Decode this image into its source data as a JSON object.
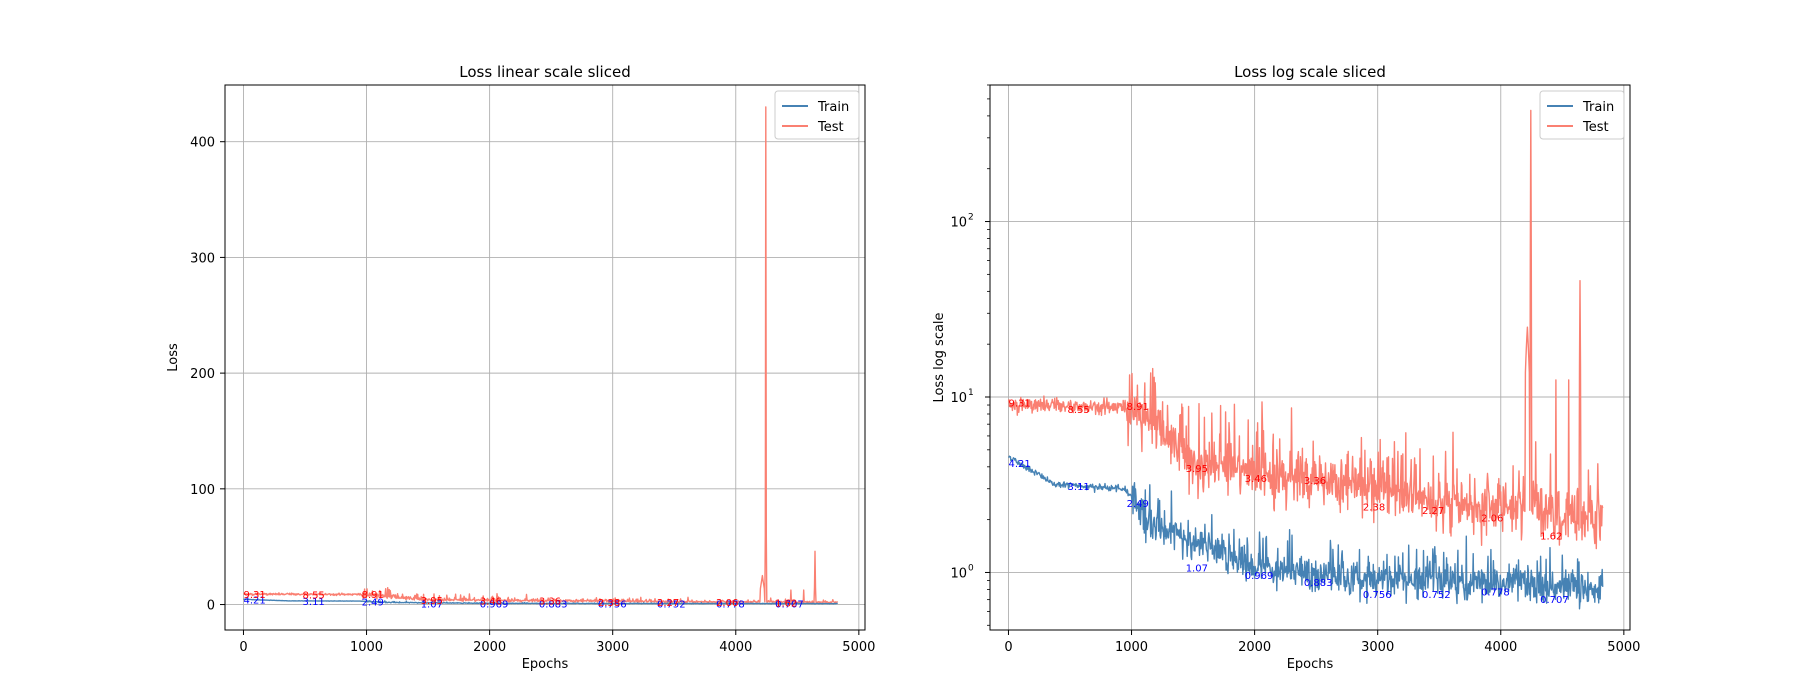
{
  "chart_data": [
    {
      "type": "line",
      "title": "Loss linear scale sliced",
      "xlabel": "Epochs",
      "ylabel": "Loss",
      "xlim": [
        -150,
        5050
      ],
      "ylim": [
        -22,
        449
      ],
      "xticks": [
        0,
        1000,
        2000,
        3000,
        4000,
        5000
      ],
      "xtick_labels": [
        "0",
        "1000",
        "2000",
        "3000",
        "4000",
        "5000"
      ],
      "yticks": [
        0,
        100,
        200,
        300,
        400
      ],
      "ytick_labels": [
        "0",
        "100",
        "200",
        "300",
        "400"
      ],
      "scale": "linear",
      "grid": true,
      "legend_position": "top-right",
      "series": [
        {
          "name": "Train",
          "color": "#4682b4"
        },
        {
          "name": "Test",
          "color": "#fa8072"
        }
      ],
      "annotations": [
        {
          "text": "4.21",
          "x": 0,
          "y": 4.21,
          "series": "Train"
        },
        {
          "text": "3.11",
          "x": 480,
          "y": 3.11,
          "series": "Train"
        },
        {
          "text": "2.49",
          "x": 960,
          "y": 2.49,
          "series": "Train"
        },
        {
          "text": "1.07",
          "x": 1440,
          "y": 1.07,
          "series": "Train"
        },
        {
          "text": "0.969",
          "x": 1920,
          "y": 0.969,
          "series": "Train"
        },
        {
          "text": "0.883",
          "x": 2400,
          "y": 0.883,
          "series": "Train"
        },
        {
          "text": "0.756",
          "x": 2880,
          "y": 0.756,
          "series": "Train"
        },
        {
          "text": "0.752",
          "x": 3360,
          "y": 0.752,
          "series": "Train"
        },
        {
          "text": "0.778",
          "x": 3840,
          "y": 0.778,
          "series": "Train"
        },
        {
          "text": "0.707",
          "x": 4320,
          "y": 0.707,
          "series": "Train"
        },
        {
          "text": "9.31",
          "x": 0,
          "y": 9.31,
          "series": "Test"
        },
        {
          "text": "8.55",
          "x": 480,
          "y": 8.55,
          "series": "Test"
        },
        {
          "text": "8.91",
          "x": 960,
          "y": 8.91,
          "series": "Test"
        },
        {
          "text": "3.95",
          "x": 1440,
          "y": 3.95,
          "series": "Test"
        },
        {
          "text": "3.46",
          "x": 1920,
          "y": 3.46,
          "series": "Test"
        },
        {
          "text": "3.36",
          "x": 2400,
          "y": 3.36,
          "series": "Test"
        },
        {
          "text": "2.38",
          "x": 2880,
          "y": 2.38,
          "series": "Test"
        },
        {
          "text": "2.27",
          "x": 3360,
          "y": 2.27,
          "series": "Test"
        },
        {
          "text": "2.06",
          "x": 3840,
          "y": 2.06,
          "series": "Test"
        },
        {
          "text": "1.62",
          "x": 4320,
          "y": 1.62,
          "series": "Test"
        }
      ]
    },
    {
      "type": "line",
      "title": "Loss log scale sliced",
      "xlabel": "Epochs",
      "ylabel": "Loss log scale",
      "xlim": [
        -150,
        5050
      ],
      "ylim": [
        0.47,
        600
      ],
      "xticks": [
        0,
        1000,
        2000,
        3000,
        4000,
        5000
      ],
      "xtick_labels": [
        "0",
        "1000",
        "2000",
        "3000",
        "4000",
        "5000"
      ],
      "yticks": [
        1,
        10,
        100
      ],
      "ytick_labels": [
        "10",
        "10",
        "10"
      ],
      "ytick_exponents": [
        "0",
        "1",
        "2"
      ],
      "scale": "log",
      "grid": true,
      "legend_position": "top-right",
      "series": [
        {
          "name": "Train",
          "color": "#4682b4"
        },
        {
          "name": "Test",
          "color": "#fa8072"
        }
      ],
      "annotations": [
        {
          "text": "4.21",
          "x": 0,
          "y": 4.21,
          "series": "Train"
        },
        {
          "text": "3.11",
          "x": 480,
          "y": 3.11,
          "series": "Train"
        },
        {
          "text": "2.49",
          "x": 960,
          "y": 2.49,
          "series": "Train"
        },
        {
          "text": "1.07",
          "x": 1440,
          "y": 1.07,
          "series": "Train"
        },
        {
          "text": "0.969",
          "x": 1920,
          "y": 0.969,
          "series": "Train"
        },
        {
          "text": "0.883",
          "x": 2400,
          "y": 0.883,
          "series": "Train"
        },
        {
          "text": "0.756",
          "x": 2880,
          "y": 0.756,
          "series": "Train"
        },
        {
          "text": "0.752",
          "x": 3360,
          "y": 0.752,
          "series": "Train"
        },
        {
          "text": "0.778",
          "x": 3840,
          "y": 0.778,
          "series": "Train"
        },
        {
          "text": "0.707",
          "x": 4320,
          "y": 0.707,
          "series": "Train"
        },
        {
          "text": "9.31",
          "x": 0,
          "y": 9.31,
          "series": "Test"
        },
        {
          "text": "8.55",
          "x": 480,
          "y": 8.55,
          "series": "Test"
        },
        {
          "text": "8.91",
          "x": 960,
          "y": 8.91,
          "series": "Test"
        },
        {
          "text": "3.95",
          "x": 1440,
          "y": 3.95,
          "series": "Test"
        },
        {
          "text": "3.46",
          "x": 1920,
          "y": 3.46,
          "series": "Test"
        },
        {
          "text": "3.36",
          "x": 2400,
          "y": 3.36,
          "series": "Test"
        },
        {
          "text": "2.38",
          "x": 2880,
          "y": 2.38,
          "series": "Test"
        },
        {
          "text": "2.27",
          "x": 3360,
          "y": 2.27,
          "series": "Test"
        },
        {
          "text": "2.06",
          "x": 3840,
          "y": 2.06,
          "series": "Test"
        },
        {
          "text": "1.62",
          "x": 4320,
          "y": 1.62,
          "series": "Test"
        }
      ]
    }
  ],
  "colors": {
    "train_line": "#4682b4",
    "test_line": "#fa8072",
    "train_annotation": "#0000ff",
    "test_annotation": "#ff0000",
    "grid": "#b0b0b0"
  }
}
